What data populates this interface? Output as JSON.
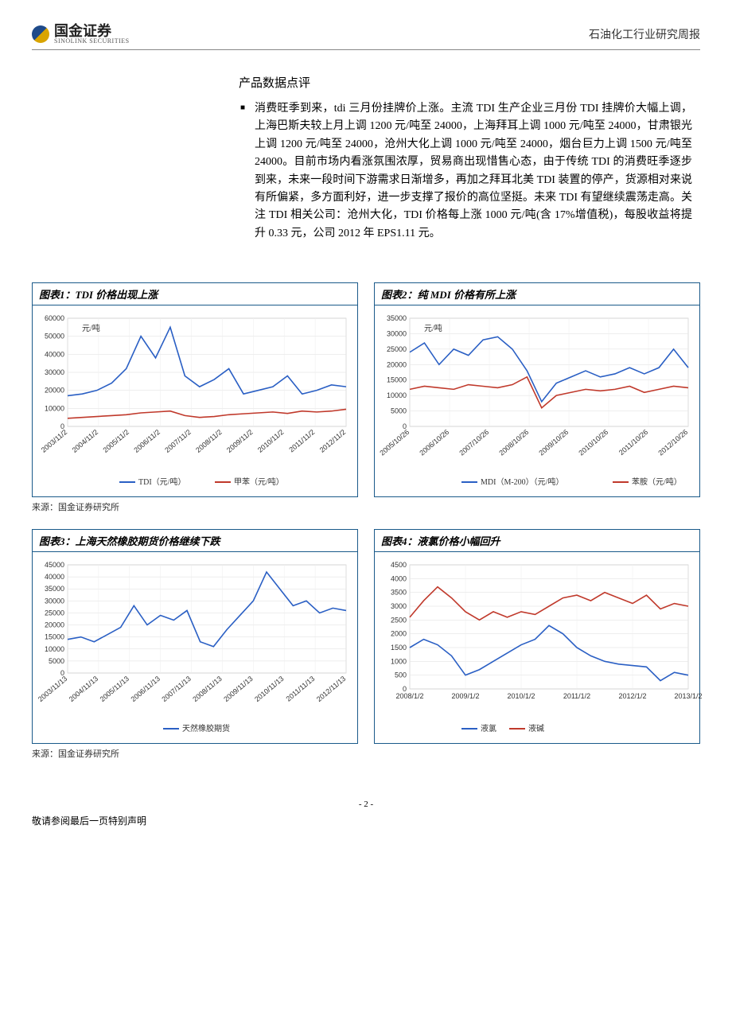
{
  "header": {
    "logo_cn": "国金证券",
    "logo_en": "SINOLINK SECURITIES",
    "report_title": "石油化工行业研究周报"
  },
  "section_title": "产品数据点评",
  "body_paragraph": "消费旺季到来，tdi 三月份挂牌价上涨。主流 TDI 生产企业三月份 TDI 挂牌价大幅上调，上海巴斯夫较上月上调 1200 元/吨至 24000，上海拜耳上调 1000 元/吨至 24000，甘肃银光上调 1200 元/吨至 24000，沧州大化上调 1000 元/吨至 24000，烟台巨力上调 1500 元/吨至 24000。目前市场内看涨氛围浓厚，贸易商出现惜售心态，由于传统 TDI 的消费旺季逐步到来，未来一段时间下游需求日渐增多，再加之拜耳北美 TDI 装置的停产，货源相对来说有所偏紧，多方面利好，进一步支撑了报价的高位坚挺。未来 TDI 有望继续震荡走高。关注 TDI 相关公司：沧州大化，TDI 价格每上涨 1000 元/吨(含 17%增值税)，每股收益将提升 0.33 元，公司 2012 年 EPS1.11 元。",
  "charts": {
    "chart1": {
      "title": "图表1：TDI 价格出现上涨",
      "unit": "元/吨",
      "y_min": 0,
      "y_max": 60000,
      "y_step": 10000,
      "x_labels": [
        "2003/11/2",
        "2004/11/2",
        "2005/11/2",
        "2006/11/2",
        "2007/11/2",
        "2008/11/2",
        "2009/11/2",
        "2010/11/2",
        "2011/11/2",
        "2012/11/2"
      ],
      "series": [
        {
          "name": "TDI（元/吨）",
          "color": "#2a5fc4",
          "points": [
            17000,
            18000,
            20000,
            24000,
            32000,
            50000,
            38000,
            55000,
            28000,
            22000,
            26000,
            32000,
            18000,
            20000,
            22000,
            28000,
            18000,
            20000,
            23000,
            22000
          ]
        },
        {
          "name": "甲苯（元/吨）",
          "color": "#c0392b",
          "points": [
            4500,
            5000,
            5500,
            6000,
            6500,
            7500,
            8000,
            8500,
            6000,
            5000,
            5500,
            6500,
            7000,
            7500,
            8000,
            7200,
            8500,
            8000,
            8500,
            9500
          ]
        }
      ]
    },
    "chart2": {
      "title": "图表2：纯 MDI 价格有所上涨",
      "unit": "元/吨",
      "y_min": 0,
      "y_max": 35000,
      "y_step": 5000,
      "x_labels": [
        "2005/10/26",
        "2006/10/26",
        "2007/10/26",
        "2008/10/26",
        "2009/10/26",
        "2010/10/26",
        "2011/10/26",
        "2012/10/26"
      ],
      "series": [
        {
          "name": "MDI（M-200）（元/吨）",
          "color": "#2a5fc4",
          "points": [
            24000,
            27000,
            20000,
            25000,
            23000,
            28000,
            29000,
            25000,
            18000,
            8000,
            14000,
            16000,
            18000,
            16000,
            17000,
            19000,
            17000,
            19000,
            25000,
            19000
          ]
        },
        {
          "name": "苯胺（元/吨）",
          "color": "#c0392b",
          "points": [
            12000,
            13000,
            12500,
            12000,
            13500,
            13000,
            12500,
            13500,
            16000,
            6000,
            10000,
            11000,
            12000,
            11500,
            12000,
            13000,
            11000,
            12000,
            13000,
            12500
          ]
        }
      ]
    },
    "chart3": {
      "title": "图表3：上海天然橡胶期货价格继续下跌",
      "y_min": 0,
      "y_max": 45000,
      "y_step": 5000,
      "x_labels": [
        "2003/11/13",
        "2004/11/13",
        "2005/11/13",
        "2006/11/13",
        "2007/11/13",
        "2008/11/13",
        "2009/11/13",
        "2010/11/13",
        "2011/11/13",
        "2012/11/13"
      ],
      "series": [
        {
          "name": "天然橡胶期货",
          "color": "#2a5fc4",
          "points": [
            14000,
            15000,
            13000,
            16000,
            19000,
            28000,
            20000,
            24000,
            22000,
            26000,
            13000,
            11000,
            18000,
            24000,
            30000,
            42000,
            35000,
            28000,
            30000,
            25000,
            27000,
            26000
          ]
        }
      ]
    },
    "chart4": {
      "title": "图表4：液氯价格小幅回升",
      "y_min": 0,
      "y_max": 4500,
      "y_step": 500,
      "x_labels": [
        "2008/1/2",
        "2009/1/2",
        "2010/1/2",
        "2011/1/2",
        "2012/1/2",
        "2013/1/2"
      ],
      "series": [
        {
          "name": "液氯",
          "color": "#2a5fc4",
          "points": [
            1500,
            1800,
            1600,
            1200,
            500,
            700,
            1000,
            1300,
            1600,
            1800,
            2300,
            2000,
            1500,
            1200,
            1000,
            900,
            850,
            800,
            300,
            600,
            500
          ]
        },
        {
          "name": "液碱",
          "color": "#c0392b",
          "points": [
            2600,
            3200,
            3700,
            3300,
            2800,
            2500,
            2800,
            2600,
            2800,
            2700,
            3000,
            3300,
            3400,
            3200,
            3500,
            3300,
            3100,
            3400,
            2900,
            3100,
            3000
          ]
        }
      ]
    }
  },
  "source_text": "来源：国金证券研究所",
  "footer": {
    "page": "- 2 -",
    "disclaimer": "敬请参阅最后一页特别声明"
  }
}
